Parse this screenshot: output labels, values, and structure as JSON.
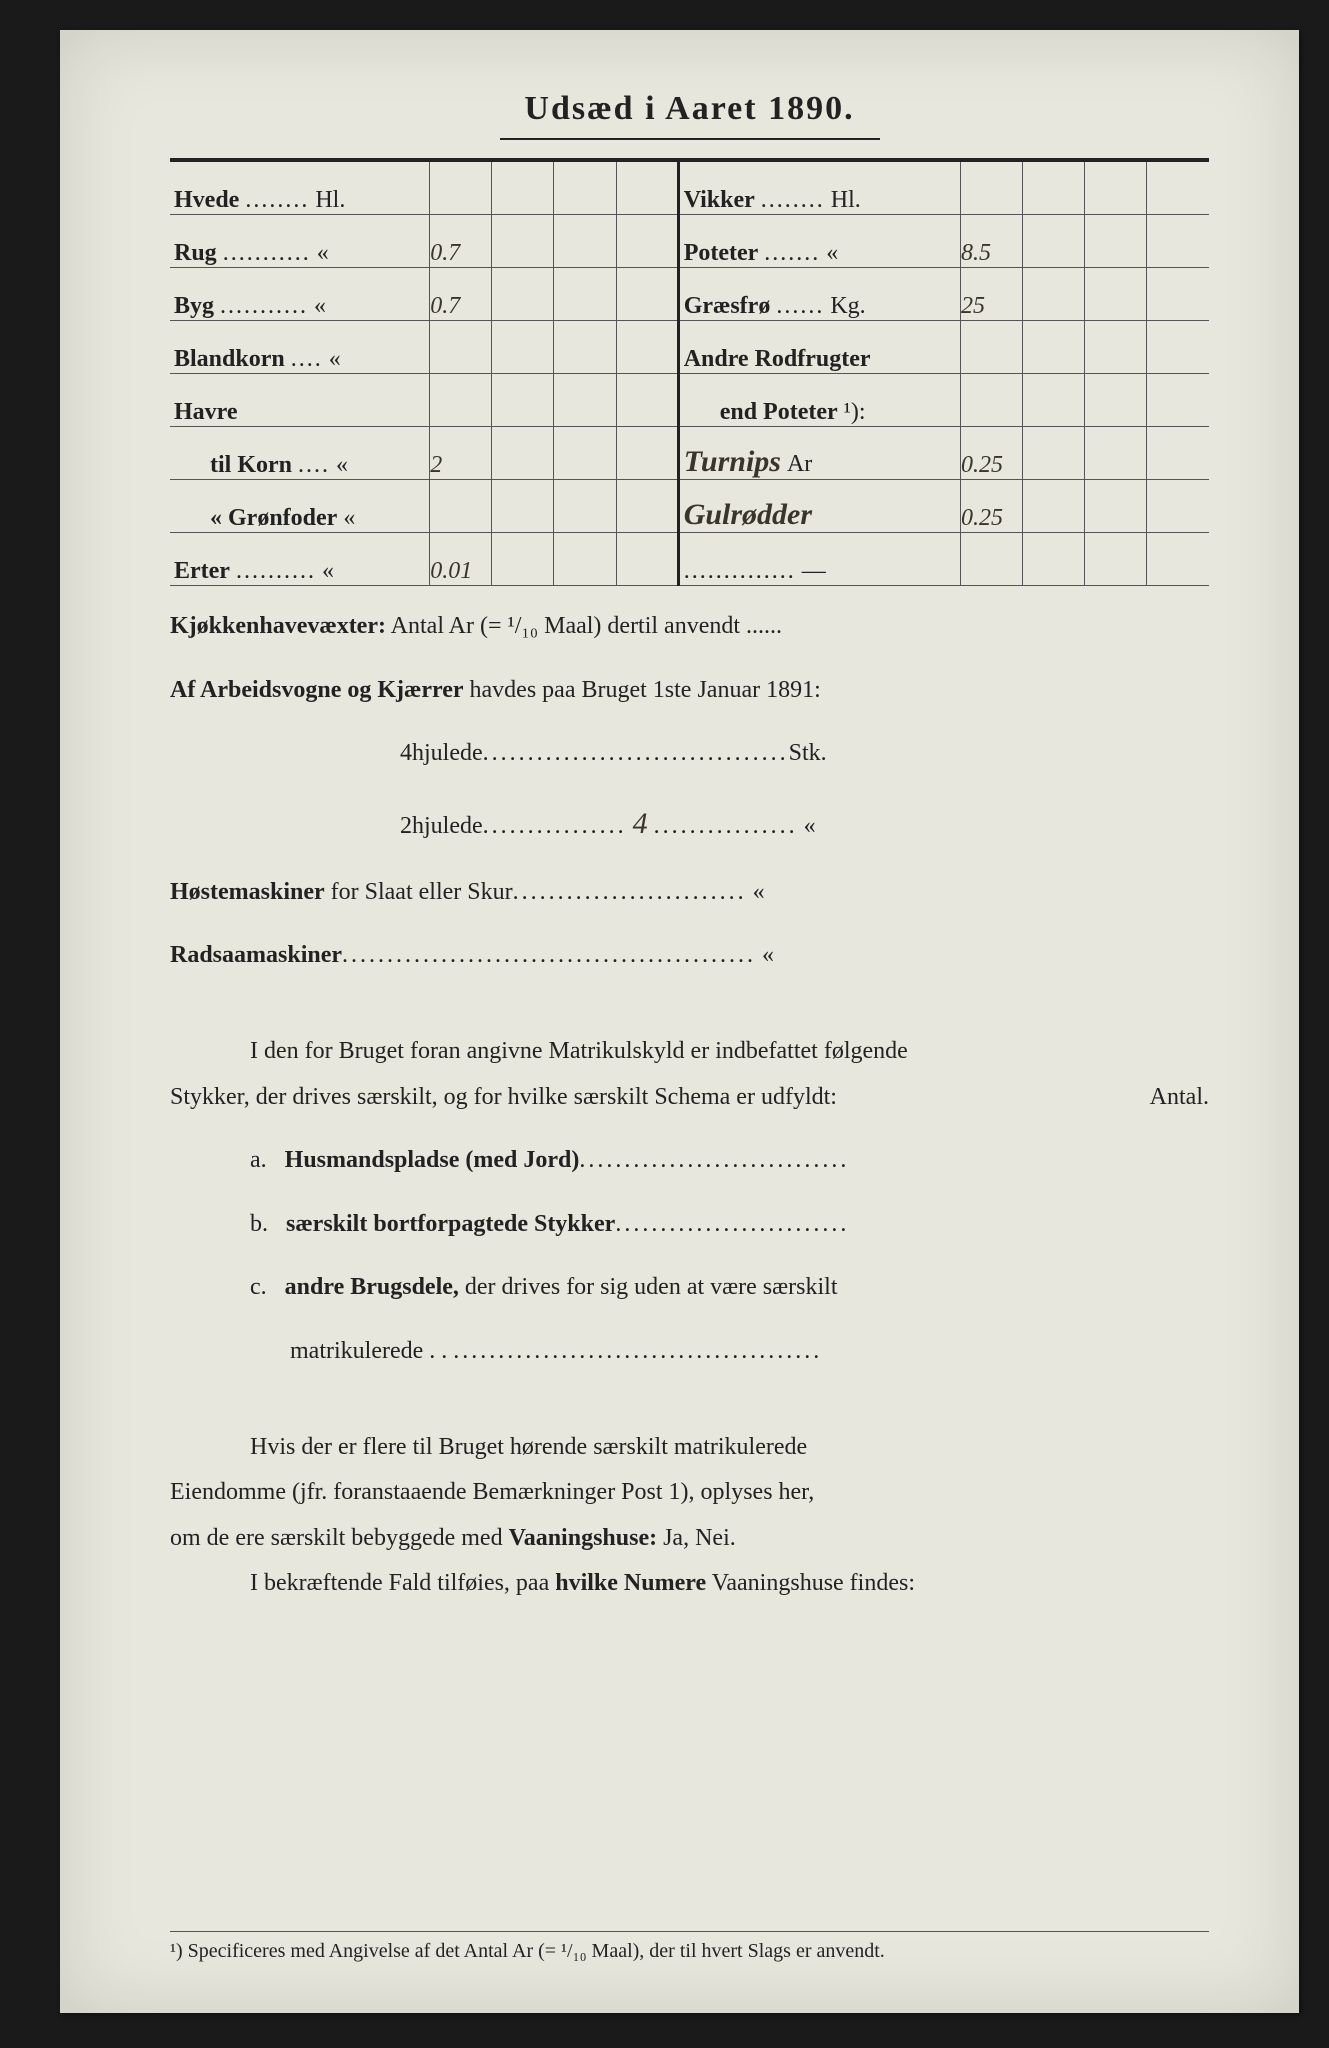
{
  "title": "Udsæd i Aaret 1890.",
  "left_rows": [
    {
      "label": "Hvede",
      "dots": "........",
      "unit": "Hl.",
      "value": ""
    },
    {
      "label": "Rug",
      "dots": "...........",
      "unit": "«",
      "value": "0.7"
    },
    {
      "label": "Byg",
      "dots": "...........",
      "unit": "«",
      "value": "0.7"
    },
    {
      "label": "Blandkorn",
      "dots": "....",
      "unit": "«",
      "value": ""
    },
    {
      "label": "Havre",
      "dots": "",
      "unit": "",
      "value": ""
    },
    {
      "label": "til Korn",
      "dots": "....",
      "unit": "«",
      "value": "2",
      "indent": true
    },
    {
      "label": "«  Grønfoder",
      "dots": "",
      "unit": "«",
      "value": "",
      "indent": true
    },
    {
      "label": "Erter",
      "dots": "..........",
      "unit": "«",
      "value": "0.01"
    }
  ],
  "right_rows": [
    {
      "label": "Vikker",
      "dots": "........",
      "unit": "Hl.",
      "value": ""
    },
    {
      "label": "Poteter",
      "dots": ".......",
      "unit": "«",
      "value": "8.5"
    },
    {
      "label": "Græsfrø",
      "dots": "......",
      "unit": "Kg.",
      "value": "25"
    },
    {
      "label": "Andre Rodfrugter",
      "dots": "",
      "unit": "",
      "value": ""
    },
    {
      "label": "end Poteter",
      "dots": "",
      "unit": "¹):",
      "value": "",
      "indent": true
    },
    {
      "label_hand": "Turnips",
      "unit": "Ar",
      "value": "0.25"
    },
    {
      "label_hand": "Gulrødder",
      "unit": "",
      "value": "0.25"
    },
    {
      "label": "",
      "dots": "..............",
      "unit": "—",
      "value": ""
    }
  ],
  "kjokken": {
    "lead": "Kjøkkenhavevæxter:",
    "text": " Antal Ar (= ¹/₁₀ Maal) dertil anvendt ......"
  },
  "wagons": {
    "lead": "Af Arbeidsvogne og Kjærrer",
    "tail": " havdes paa Bruget 1ste Januar 1891:",
    "row4_label": "4hjulede",
    "row4_val": "",
    "row4_unit": "Stk.",
    "row2_label": "2hjulede",
    "row2_val": "4",
    "row2_unit": "«"
  },
  "hoste": {
    "lead": "Høstemaskiner",
    "tail": " for Slaat eller Skur",
    "unit": "«"
  },
  "radsaa": {
    "lead": "Radsaamaskiner",
    "unit": "«"
  },
  "para1": {
    "line1": "I den for Bruget foran angivne Matrikulskyld er indbefattet følgende",
    "line2": "Stykker, der drives særskilt, og for hvilke særskilt Schema er udfyldt:",
    "antal": "Antal."
  },
  "list": {
    "a_label": "a.",
    "a_bold": "Husmandspladse (med Jord)",
    "b_label": "b.",
    "b_bold": "særskilt bortforpagtede Stykker",
    "c_label": "c.",
    "c_bold": "andre Brugsdele,",
    "c_tail1": " der drives for sig uden at være særskilt",
    "c_tail2": "matrikulerede . .  "
  },
  "para2": {
    "line1": "Hvis der er flere til Bruget hørende særskilt matrikulerede",
    "line2_a": "Eiendomme (jfr. foranstaaende Bemærkninger Post 1), oplyses her,",
    "line3_a": "om de ere særskilt bebyggede med ",
    "line3_b": "Vaaningshuse:",
    "line3_c": " Ja, Nei.",
    "line4_a": "I bekræftende Fald tilføies, paa ",
    "line4_b": "hvilke Numere",
    "line4_c": " Vaaningshuse findes:"
  },
  "footnote": "¹) Specificeres med Angivelse af det Antal Ar (= ¹/₁₀ Maal), der til hvert Slags er anvendt."
}
